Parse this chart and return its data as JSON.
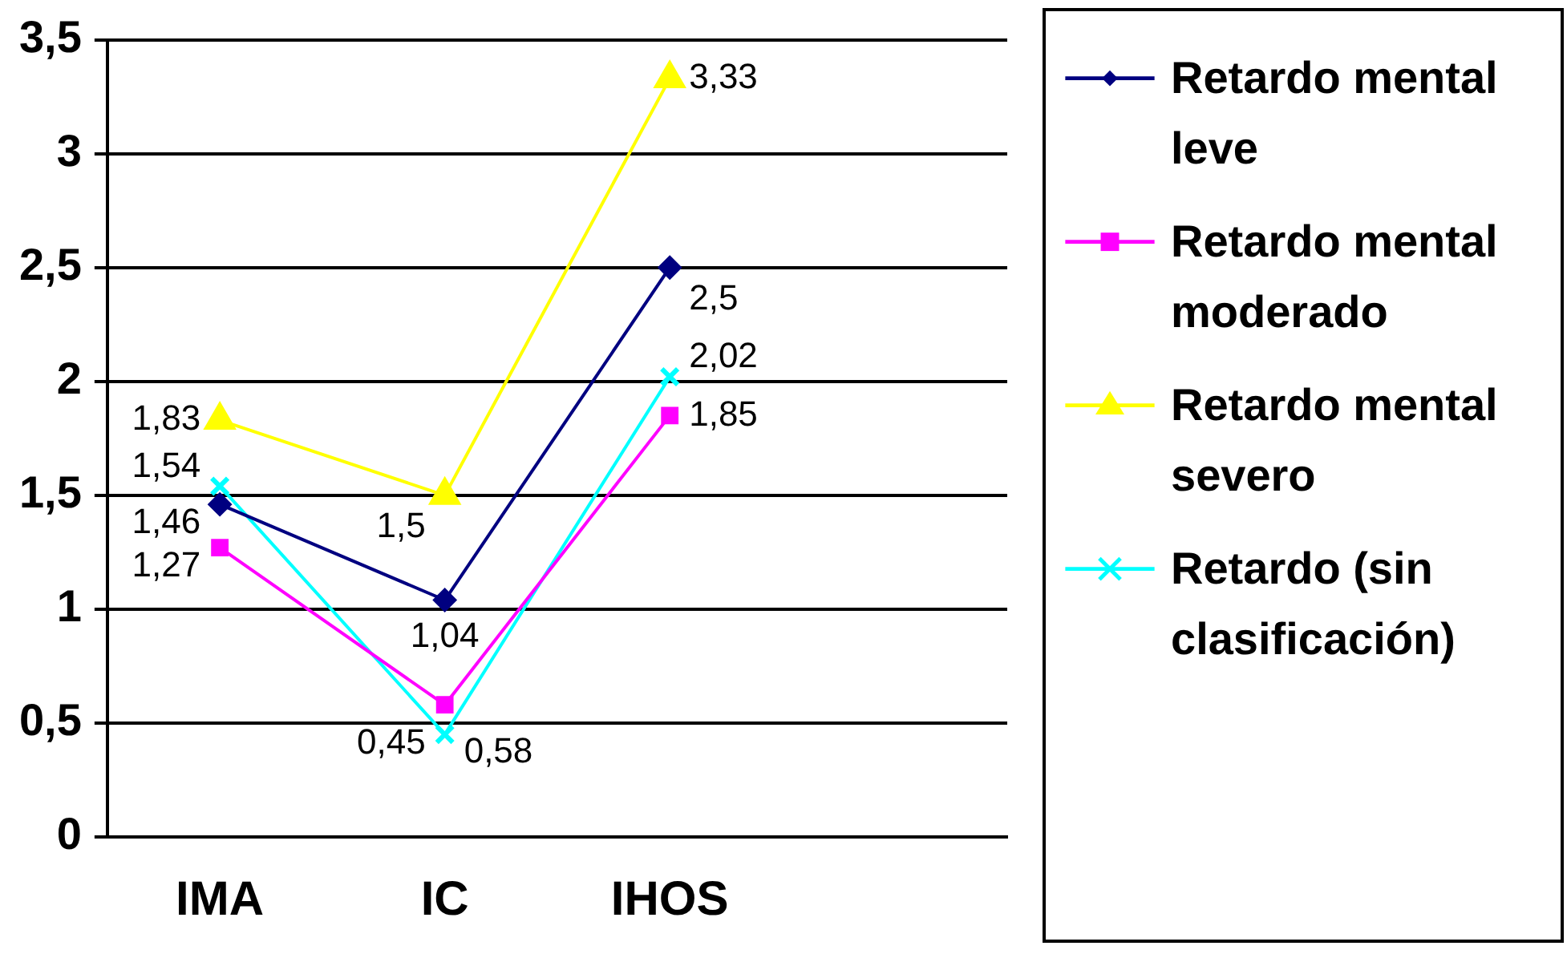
{
  "chart_data": {
    "type": "line",
    "categories": [
      "IMA",
      "IC",
      "IHOS",
      null
    ],
    "series": [
      {
        "name": "Retardo mental leve",
        "color": "#000080",
        "marker": "diamond",
        "values": [
          1.46,
          1.04,
          2.5,
          null
        ],
        "value_labels": [
          "1,46",
          "1,04",
          "2,5",
          null
        ]
      },
      {
        "name": "Retardo mental moderado",
        "color": "#ff00ff",
        "marker": "square",
        "values": [
          1.27,
          0.58,
          1.85,
          null
        ],
        "value_labels": [
          "1,27",
          "0,58",
          "1,85",
          null
        ]
      },
      {
        "name": "Retardo mental severo",
        "color": "#ffff00",
        "marker": "triangle",
        "values": [
          1.83,
          1.5,
          3.33,
          null
        ],
        "value_labels": [
          "1,83",
          "1,5",
          "3,33",
          null
        ]
      },
      {
        "name": "Retardo (sin clasificación)",
        "color": "#00ffff",
        "marker": "cross",
        "values": [
          1.54,
          0.45,
          2.02,
          null
        ],
        "value_labels": [
          "1,54",
          "0,45",
          "2,02",
          null
        ]
      }
    ],
    "ylim": [
      0,
      3.5
    ],
    "yticks": [
      0,
      {
        "value": 0.5,
        "label": "0,5"
      },
      1,
      {
        "value": 1.5,
        "label": "1,5"
      },
      2,
      {
        "value": 2.5,
        "label": "2,5"
      },
      3,
      {
        "value": 3.5,
        "label": "3,5"
      }
    ],
    "grid": "y",
    "legend": "right",
    "line_style": "solid"
  }
}
